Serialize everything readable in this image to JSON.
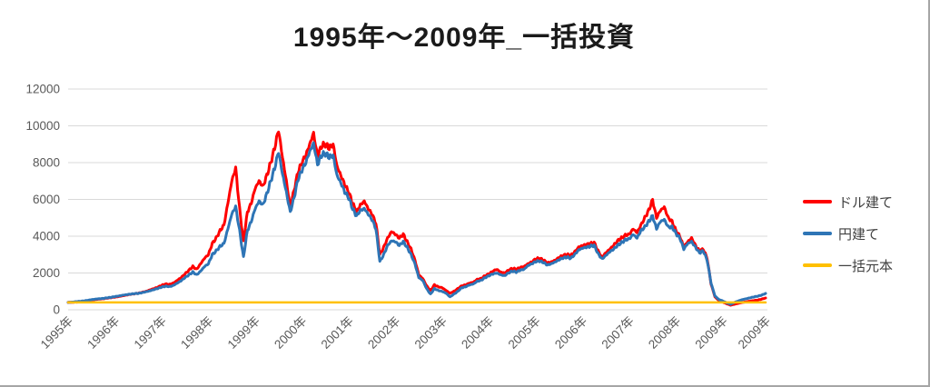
{
  "title": "1995年～2009年_一括投資",
  "legend": [
    {
      "label": "ドル建て",
      "color": "#ff0000"
    },
    {
      "label": "円建て",
      "color": "#2e75b6"
    },
    {
      "label": "一括元本",
      "color": "#ffc000"
    }
  ],
  "style": {
    "grid_color": "#d9d9d9",
    "axis_label_color": "#595959",
    "title_color": "#1a1a1a",
    "border_color": "#a6a6a6",
    "texture_amplitude": 55
  },
  "chart_data": {
    "type": "line",
    "title": "1995年～2009年_一括投資",
    "xlabel": "",
    "ylabel": "",
    "ylim": [
      0,
      12000
    ],
    "y_ticks": [
      0,
      2000,
      4000,
      6000,
      8000,
      10000,
      12000
    ],
    "grid": "horizontal",
    "legend_position": "right",
    "x_start_year": 1995,
    "points_per_year": 12,
    "x_tick_labels": [
      "1995年",
      "1996年",
      "1997年",
      "1998年",
      "1999年",
      "2000年",
      "2001年",
      "2002年",
      "2003年",
      "2004年",
      "2005年",
      "2006年",
      "2007年",
      "2008年",
      "2009年",
      "2009年"
    ],
    "x_tick_months": [
      0,
      12,
      24,
      36,
      48,
      60,
      72,
      84,
      96,
      108,
      120,
      132,
      144,
      156,
      168,
      179
    ],
    "series": [
      {
        "name": "ドル建て",
        "color": "#ff0000",
        "values": [
          400,
          410,
          420,
          430,
          460,
          490,
          530,
          560,
          580,
          600,
          630,
          660,
          690,
          720,
          760,
          800,
          840,
          870,
          900,
          950,
          1000,
          1080,
          1150,
          1230,
          1330,
          1400,
          1380,
          1450,
          1600,
          1750,
          1950,
          2150,
          2350,
          2200,
          2500,
          2800,
          3000,
          3600,
          3900,
          4300,
          4600,
          5800,
          7000,
          7700,
          5500,
          3700,
          5300,
          5800,
          6600,
          7000,
          6700,
          7300,
          8000,
          8800,
          9780,
          8300,
          7000,
          5600,
          6500,
          7500,
          8000,
          8400,
          9000,
          9600,
          8300,
          8900,
          9000,
          8800,
          9000,
          7800,
          7300,
          6800,
          6400,
          5800,
          5300,
          5700,
          5900,
          5500,
          5200,
          4700,
          3000,
          3400,
          3900,
          4250,
          4100,
          3900,
          4100,
          3700,
          3300,
          2700,
          1900,
          1700,
          1300,
          1050,
          1350,
          1250,
          1200,
          1050,
          900,
          1000,
          1150,
          1300,
          1350,
          1450,
          1500,
          1650,
          1700,
          1850,
          1950,
          2100,
          2200,
          2050,
          2000,
          2150,
          2250,
          2200,
          2300,
          2350,
          2500,
          2600,
          2770,
          2800,
          2700,
          2550,
          2600,
          2700,
          2850,
          2950,
          3010,
          2950,
          3150,
          3400,
          3500,
          3550,
          3600,
          3650,
          3200,
          2860,
          3100,
          3300,
          3500,
          3750,
          3900,
          4050,
          4100,
          4400,
          4200,
          4600,
          5000,
          5400,
          5975,
          5000,
          5400,
          5580,
          5000,
          4800,
          4300,
          4000,
          3400,
          3700,
          3900,
          3500,
          3200,
          3300,
          2800,
          1400,
          700,
          500,
          420,
          330,
          250,
          300,
          350,
          400,
          430,
          470,
          500,
          530,
          580,
          640
        ]
      },
      {
        "name": "円建て",
        "color": "#2e75b6",
        "values": [
          400,
          415,
          440,
          460,
          480,
          510,
          550,
          580,
          600,
          620,
          650,
          680,
          720,
          750,
          790,
          820,
          850,
          880,
          890,
          930,
          980,
          1030,
          1100,
          1160,
          1230,
          1280,
          1260,
          1320,
          1450,
          1580,
          1750,
          1900,
          2050,
          1900,
          2100,
          2350,
          2500,
          3000,
          3200,
          3450,
          3600,
          4400,
          5200,
          5600,
          4300,
          2850,
          4300,
          4800,
          5500,
          5900,
          5700,
          6300,
          7000,
          7700,
          8600,
          7400,
          6400,
          5300,
          6100,
          7100,
          7600,
          8000,
          8600,
          9040,
          7900,
          8400,
          8500,
          8300,
          8400,
          7300,
          6900,
          6400,
          6100,
          5500,
          5100,
          5400,
          5500,
          5200,
          4900,
          4400,
          2620,
          3000,
          3500,
          3750,
          3700,
          3500,
          3700,
          3400,
          3000,
          2500,
          1750,
          1600,
          1150,
          850,
          1150,
          1050,
          1000,
          900,
          700,
          850,
          1000,
          1200,
          1250,
          1350,
          1400,
          1550,
          1600,
          1750,
          1850,
          1950,
          2000,
          1900,
          1850,
          2000,
          2100,
          2050,
          2150,
          2200,
          2400,
          2500,
          2620,
          2650,
          2570,
          2430,
          2500,
          2600,
          2720,
          2820,
          2860,
          2800,
          3000,
          3250,
          3350,
          3400,
          3450,
          3500,
          3050,
          2760,
          2950,
          3150,
          3300,
          3500,
          3650,
          3800,
          3850,
          4100,
          3900,
          4300,
          4500,
          4800,
          5100,
          4400,
          4800,
          4900,
          4500,
          4500,
          4150,
          3900,
          3300,
          3600,
          3700,
          3400,
          3100,
          3200,
          2700,
          1450,
          750,
          560,
          480,
          380,
          300,
          400,
          480,
          550,
          600,
          650,
          700,
          740,
          800,
          890
        ]
      },
      {
        "name": "一括元本",
        "color": "#ffc000",
        "constant": 400
      }
    ]
  }
}
